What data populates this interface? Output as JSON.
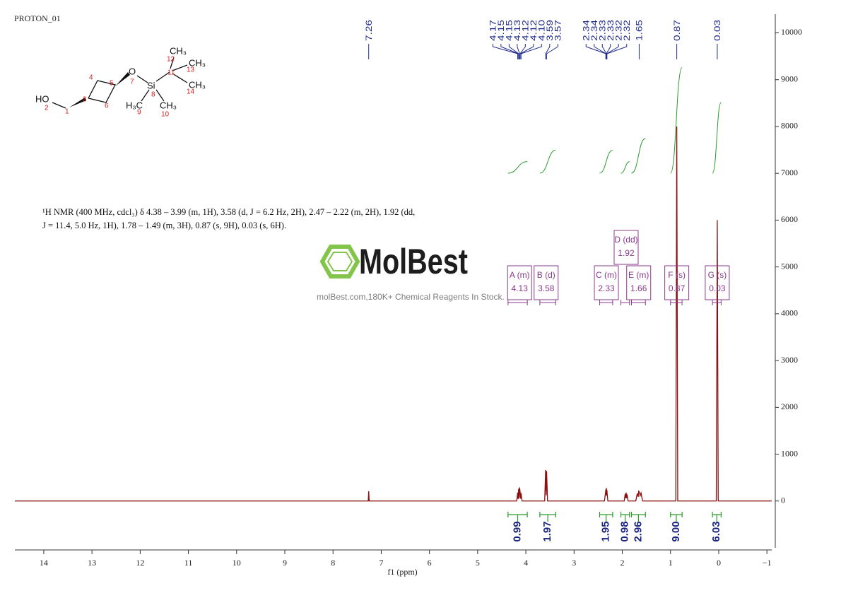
{
  "header": {
    "title": "PROTON_01"
  },
  "watermark": {
    "brand": "MolBest",
    "tagline": "molBest.com,180K+ Chemical Reagents In Stock."
  },
  "structure": {
    "labels": [
      "HO",
      "O",
      "Si",
      "CH₃",
      "CH₃",
      "CH₃",
      "H₃C",
      "CH₃"
    ],
    "numbers": [
      1,
      2,
      3,
      4,
      5,
      6,
      7,
      8,
      9,
      10,
      11,
      12,
      13,
      14
    ]
  },
  "description": [
    "¹H NMR (400 MHz, cdcl₃) δ 4.38 – 3.99 (m, 1H), 3.58 (d, J = 6.2 Hz, 2H), 2.47 – 2.22 (m, 2H), 1.92 (dd,",
    "J = 11.4, 5.0 Hz, 1H), 1.78 – 1.49 (m, 3H), 0.87 (s, 9H), 0.03 (s, 6H)."
  ],
  "chart_data": {
    "type": "line",
    "x_label": "f1  (ppm)",
    "xlim": [
      14.6,
      -1.1
    ],
    "xticks": [
      14,
      13,
      12,
      11,
      10,
      9,
      8,
      7,
      6,
      5,
      4,
      3,
      2,
      1,
      0,
      {
        "value": -1,
        "label": "−1"
      }
    ],
    "ylim": [
      -1000,
      10400
    ],
    "yticks": [
      0,
      1000,
      2000,
      3000,
      4000,
      5000,
      6000,
      7000,
      8000,
      9000,
      10000
    ],
    "x": [
      14.6,
      7.27,
      7.26,
      7.25,
      4.19,
      4.17,
      4.16,
      4.15,
      4.14,
      4.13,
      4.12,
      4.11,
      4.1,
      4.08,
      3.61,
      3.59,
      3.58,
      3.57,
      3.55,
      2.37,
      2.34,
      2.335,
      2.33,
      2.325,
      2.32,
      2.3,
      1.96,
      1.94,
      1.93,
      1.92,
      1.91,
      1.9,
      1.88,
      1.72,
      1.69,
      1.67,
      1.66,
      1.65,
      1.63,
      1.61,
      1.58,
      0.89,
      0.87,
      0.85,
      0.05,
      0.03,
      0.01,
      -1.1
    ],
    "series": [
      {
        "color": "#8b1010",
        "values": [
          0,
          0,
          210,
          0,
          0,
          180,
          40,
          260,
          60,
          290,
          200,
          50,
          170,
          0,
          0,
          660,
          120,
          640,
          0,
          0,
          250,
          120,
          280,
          120,
          240,
          0,
          0,
          150,
          60,
          180,
          60,
          140,
          0,
          0,
          160,
          90,
          210,
          200,
          110,
          170,
          0,
          0,
          8000,
          0,
          0,
          6000,
          0,
          0
        ]
      }
    ],
    "peak_label_color": "#1f2a8c",
    "peak_labels": [
      7.26,
      4.17,
      4.15,
      4.15,
      4.13,
      4.12,
      4.12,
      {
        "value": 4.1,
        "label": "4.10"
      },
      3.59,
      3.57,
      2.34,
      2.34,
      2.33,
      2.33,
      2.32,
      2.32,
      1.65,
      0.87,
      0.03
    ],
    "multiplet_color": "#8b3a8b",
    "multiplets": [
      {
        "name": "A (m)",
        "shift": 4.13,
        "range": [
          4.37,
          3.97
        ]
      },
      {
        "name": "B (d)",
        "shift": 3.58,
        "range": [
          3.71,
          3.38
        ]
      },
      {
        "name": "C (m)",
        "shift": 2.33,
        "range": [
          2.47,
          2.2
        ]
      },
      {
        "name": "D (dd)",
        "shift": 1.92,
        "range": [
          2.03,
          1.85
        ]
      },
      {
        "name": "E (m)",
        "shift": 1.66,
        "range": [
          1.81,
          1.52
        ]
      },
      {
        "name": "F (s)",
        "shift": 0.87,
        "range": [
          1.0,
          0.76
        ]
      },
      {
        "name": "G (s)",
        "shift": 0.03,
        "range": [
          0.13,
          -0.05
        ]
      }
    ],
    "integral_color": "#2a9a2a",
    "integral_label_color": "#1a237e",
    "integrals": [
      {
        "range": [
          4.37,
          3.97
        ],
        "value": 0.99
      },
      {
        "range": [
          3.71,
          3.38
        ],
        "value": 1.97
      },
      {
        "range": [
          2.47,
          2.2
        ],
        "value": 1.95
      },
      {
        "range": [
          2.03,
          1.85
        ],
        "value": 0.98
      },
      {
        "range": [
          1.81,
          1.52
        ],
        "value": 2.96
      },
      {
        "range": [
          1.0,
          0.76
        ],
        "value": {
          "value": 9,
          "label": "9.00"
        }
      },
      {
        "range": [
          0.13,
          -0.05
        ],
        "value": 6.03
      }
    ]
  }
}
